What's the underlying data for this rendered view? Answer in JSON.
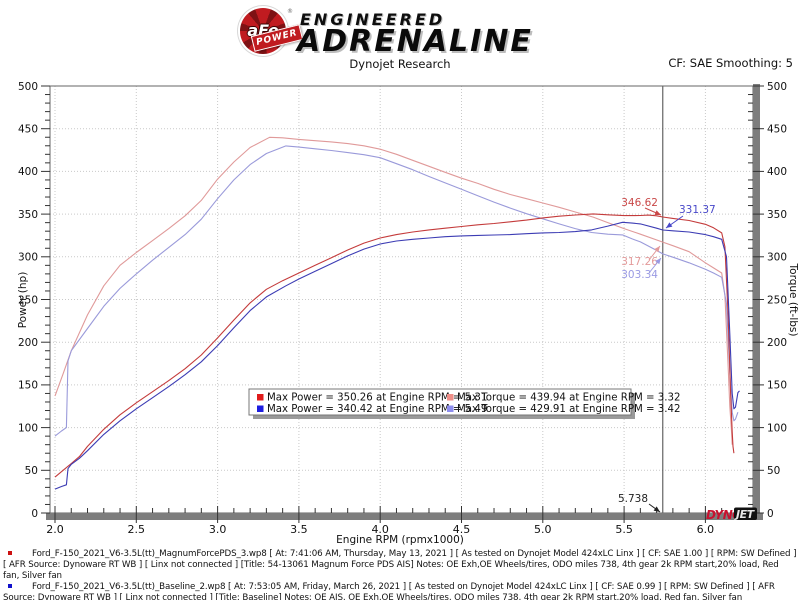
{
  "header": {
    "logo_main": "aFe",
    "logo_reg": "®",
    "logo_sub": "POWER",
    "brand_top": "ENGINEERED",
    "brand_bottom": "ADRENALINE",
    "title": "Dynojet Research",
    "correction": "CF: SAE Smoothing: 5"
  },
  "chart_data": {
    "type": "line",
    "title": "Dynojet Research",
    "xlabel": "Engine RPM (rpmx1000)",
    "ylabel_left": "Power (hp)",
    "ylabel_right": "Torque (ft-lbs)",
    "xlim": [
      2.0,
      6.29
    ],
    "ylim": [
      0,
      500
    ],
    "x_major_step": 0.5,
    "x_minor_step": 0.1,
    "x_label_min": 2.0,
    "x_label_max": 6.0,
    "y_major_step": 50,
    "y_minor_step": 10,
    "grid": "dotted",
    "legend_position": "center-bottom",
    "cursor_rpm": 5.738,
    "cursor_label": "5.738",
    "watermark": {
      "part1": "DYNO",
      "part2": "JET"
    },
    "series": [
      {
        "id": "power-magnumforce",
        "legend": "Max Power = 350.26 at Engine RPM = 5.31",
        "max_value": 350.26,
        "max_rpm": 5.31,
        "color": "#c43b3b",
        "swatch": "#e01b1b",
        "axis": "left",
        "points": [
          [
            2.0,
            42
          ],
          [
            2.05,
            50
          ],
          [
            2.1,
            58
          ],
          [
            2.15,
            66
          ],
          [
            2.2,
            78
          ],
          [
            2.3,
            98
          ],
          [
            2.4,
            115
          ],
          [
            2.5,
            129
          ],
          [
            2.6,
            142
          ],
          [
            2.7,
            155
          ],
          [
            2.8,
            169
          ],
          [
            2.9,
            185
          ],
          [
            3.0,
            205
          ],
          [
            3.1,
            226
          ],
          [
            3.2,
            246
          ],
          [
            3.3,
            262
          ],
          [
            3.4,
            272
          ],
          [
            3.5,
            281
          ],
          [
            3.6,
            290
          ],
          [
            3.7,
            299
          ],
          [
            3.8,
            308
          ],
          [
            3.9,
            316
          ],
          [
            4.0,
            322
          ],
          [
            4.1,
            326
          ],
          [
            4.2,
            329
          ],
          [
            4.3,
            331.5
          ],
          [
            4.4,
            333.5
          ],
          [
            4.5,
            335.5
          ],
          [
            4.6,
            337.5
          ],
          [
            4.7,
            339
          ],
          [
            4.8,
            341
          ],
          [
            4.9,
            343
          ],
          [
            5.0,
            345.5
          ],
          [
            5.1,
            347.5
          ],
          [
            5.2,
            349
          ],
          [
            5.31,
            350.26
          ],
          [
            5.4,
            349.2
          ],
          [
            5.5,
            348.2
          ],
          [
            5.6,
            348.4
          ],
          [
            5.65,
            348.8
          ],
          [
            5.7,
            348
          ],
          [
            5.738,
            346.62
          ],
          [
            5.8,
            345
          ],
          [
            5.9,
            342.5
          ],
          [
            6.0,
            338
          ],
          [
            6.05,
            334
          ],
          [
            6.1,
            328
          ],
          [
            6.12,
            312
          ],
          [
            6.14,
            230
          ],
          [
            6.155,
            140
          ],
          [
            6.165,
            95
          ],
          [
            6.17,
            78
          ],
          [
            6.175,
            70
          ]
        ]
      },
      {
        "id": "power-baseline",
        "legend": "Max Power = 340.42 at Engine RPM = 5.49",
        "max_value": 340.42,
        "max_rpm": 5.49,
        "color": "#3c3cb4",
        "swatch": "#1d1de0",
        "axis": "left",
        "points": [
          [
            2.0,
            28
          ],
          [
            2.04,
            31
          ],
          [
            2.07,
            33
          ],
          [
            2.08,
            52
          ],
          [
            2.1,
            57
          ],
          [
            2.15,
            64
          ],
          [
            2.2,
            73
          ],
          [
            2.3,
            92
          ],
          [
            2.4,
            108
          ],
          [
            2.5,
            122
          ],
          [
            2.6,
            135
          ],
          [
            2.7,
            148
          ],
          [
            2.8,
            162
          ],
          [
            2.9,
            177
          ],
          [
            3.0,
            196
          ],
          [
            3.1,
            217
          ],
          [
            3.2,
            237
          ],
          [
            3.3,
            253
          ],
          [
            3.42,
            266
          ],
          [
            3.5,
            274
          ],
          [
            3.6,
            283
          ],
          [
            3.7,
            292
          ],
          [
            3.8,
            301
          ],
          [
            3.9,
            309
          ],
          [
            4.0,
            315
          ],
          [
            4.1,
            318.5
          ],
          [
            4.2,
            320.5
          ],
          [
            4.3,
            322
          ],
          [
            4.4,
            323.5
          ],
          [
            4.5,
            324.5
          ],
          [
            4.6,
            325
          ],
          [
            4.7,
            325.5
          ],
          [
            4.8,
            326
          ],
          [
            4.9,
            327
          ],
          [
            5.0,
            328
          ],
          [
            5.1,
            328.5
          ],
          [
            5.2,
            329.5
          ],
          [
            5.3,
            331.5
          ],
          [
            5.4,
            336
          ],
          [
            5.49,
            340.42
          ],
          [
            5.55,
            339.5
          ],
          [
            5.6,
            338.5
          ],
          [
            5.7,
            333.5
          ],
          [
            5.738,
            331.37
          ],
          [
            5.8,
            330.5
          ],
          [
            5.9,
            329
          ],
          [
            6.0,
            326
          ],
          [
            6.05,
            323.5
          ],
          [
            6.1,
            320.5
          ],
          [
            6.13,
            300
          ],
          [
            6.15,
            210
          ],
          [
            6.165,
            140
          ],
          [
            6.175,
            122
          ],
          [
            6.185,
            124
          ],
          [
            6.2,
            141
          ],
          [
            6.21,
            143
          ]
        ]
      },
      {
        "id": "torque-magnumforce",
        "legend": "Max Torque = 439.94 at Engine RPM = 3.32",
        "max_value": 439.94,
        "max_rpm": 3.32,
        "color": "#e09a9a",
        "swatch": "#ef8e88",
        "axis": "right",
        "points": [
          [
            2.0,
            137
          ],
          [
            2.05,
            163
          ],
          [
            2.1,
            190
          ],
          [
            2.2,
            232
          ],
          [
            2.3,
            266
          ],
          [
            2.4,
            290
          ],
          [
            2.5,
            305
          ],
          [
            2.6,
            319
          ],
          [
            2.7,
            333
          ],
          [
            2.8,
            348
          ],
          [
            2.9,
            366
          ],
          [
            3.0,
            391
          ],
          [
            3.1,
            411
          ],
          [
            3.2,
            428
          ],
          [
            3.32,
            439.94
          ],
          [
            3.4,
            439.4
          ],
          [
            3.5,
            437.5
          ],
          [
            3.6,
            436
          ],
          [
            3.7,
            434.5
          ],
          [
            3.8,
            432.5
          ],
          [
            3.9,
            430
          ],
          [
            4.0,
            426
          ],
          [
            4.1,
            420
          ],
          [
            4.2,
            413
          ],
          [
            4.3,
            406
          ],
          [
            4.4,
            399
          ],
          [
            4.5,
            392
          ],
          [
            4.6,
            386
          ],
          [
            4.7,
            379
          ],
          [
            4.8,
            373
          ],
          [
            4.9,
            368
          ],
          [
            5.0,
            363
          ],
          [
            5.1,
            358
          ],
          [
            5.2,
            352.5
          ],
          [
            5.31,
            346.44
          ],
          [
            5.4,
            340
          ],
          [
            5.5,
            333
          ],
          [
            5.6,
            326.5
          ],
          [
            5.738,
            317.26
          ],
          [
            5.8,
            313
          ],
          [
            5.9,
            306
          ],
          [
            6.0,
            293
          ],
          [
            6.05,
            287
          ],
          [
            6.1,
            281
          ],
          [
            6.12,
            255
          ],
          [
            6.14,
            170
          ],
          [
            6.15,
            125
          ],
          [
            6.16,
            98
          ],
          [
            6.165,
            80
          ]
        ]
      },
      {
        "id": "torque-baseline",
        "legend": "Max Torque = 429.91 at Engine RPM = 3.42",
        "max_value": 429.91,
        "max_rpm": 3.42,
        "color": "#9a9ada",
        "swatch": "#8e8eef",
        "axis": "right",
        "points": [
          [
            2.0,
            90
          ],
          [
            2.04,
            96
          ],
          [
            2.07,
            100
          ],
          [
            2.08,
            178
          ],
          [
            2.1,
            190
          ],
          [
            2.2,
            216
          ],
          [
            2.3,
            242
          ],
          [
            2.4,
            263
          ],
          [
            2.5,
            280
          ],
          [
            2.6,
            296
          ],
          [
            2.7,
            311
          ],
          [
            2.8,
            326
          ],
          [
            2.9,
            344
          ],
          [
            3.0,
            368
          ],
          [
            3.1,
            390
          ],
          [
            3.2,
            408
          ],
          [
            3.3,
            421
          ],
          [
            3.42,
            429.91
          ],
          [
            3.5,
            428.5
          ],
          [
            3.6,
            426.5
          ],
          [
            3.7,
            424.5
          ],
          [
            3.8,
            422
          ],
          [
            3.9,
            419.5
          ],
          [
            4.0,
            416
          ],
          [
            4.1,
            409
          ],
          [
            4.2,
            402
          ],
          [
            4.3,
            394
          ],
          [
            4.4,
            386.5
          ],
          [
            4.5,
            379
          ],
          [
            4.6,
            371.5
          ],
          [
            4.7,
            364
          ],
          [
            4.8,
            357
          ],
          [
            4.9,
            350.5
          ],
          [
            5.0,
            344.5
          ],
          [
            5.1,
            338.5
          ],
          [
            5.2,
            333
          ],
          [
            5.3,
            328.5
          ],
          [
            5.4,
            326.5
          ],
          [
            5.49,
            325.66
          ],
          [
            5.55,
            321
          ],
          [
            5.6,
            317.5
          ],
          [
            5.7,
            307.5
          ],
          [
            5.738,
            303.34
          ],
          [
            5.8,
            299.5
          ],
          [
            5.9,
            293
          ],
          [
            6.0,
            285.5
          ],
          [
            6.05,
            281
          ],
          [
            6.1,
            276
          ],
          [
            6.13,
            245
          ],
          [
            6.15,
            165
          ],
          [
            6.165,
            118
          ],
          [
            6.175,
            108
          ],
          [
            6.185,
            110
          ],
          [
            6.2,
            118
          ]
        ]
      }
    ],
    "legend_order": [
      0,
      2,
      1,
      3
    ],
    "annotations": [
      {
        "label": "346.62",
        "color": "#c94848",
        "text": [
          658,
          206
        ],
        "anchor": "end",
        "from": [
          645,
          208
        ],
        "to": [
          661,
          215
        ]
      },
      {
        "label": "331.37",
        "color": "#4848c9",
        "text": [
          679,
          213
        ],
        "anchor": "start",
        "from": [
          683,
          216
        ],
        "to": [
          666,
          228
        ]
      },
      {
        "label": "317.26",
        "color": "#e39a9a",
        "text": [
          658,
          265
        ],
        "anchor": "end",
        "from": [
          649,
          260
        ],
        "to": [
          660,
          246
        ]
      },
      {
        "label": "303.34",
        "color": "#9a9ae3",
        "text": [
          658,
          278
        ],
        "anchor": "end",
        "from": [
          649,
          273
        ],
        "to": [
          661,
          258
        ]
      },
      {
        "label": "5.738",
        "color": "#222222",
        "text": [
          648,
          502
        ],
        "anchor": "end",
        "from": [
          649,
          504
        ],
        "to": [
          660,
          512
        ]
      }
    ]
  },
  "footer": {
    "entries": [
      {
        "bullet_color": "#cc1111",
        "text": "Ford_F-150_2021_V6-3.5L(tt)_MagnumForcePDS_3.wp8 [ At: 7:41:06 AM, Thursday, May 13, 2021 ] [ As tested on Dynojet Model 424xLC Linx ] [ CF: SAE 1.00 ] [ RPM: SW Defined ] [ AFR Source: Dynoware RT WB ] [ Linx not connected ] [Title: 54-13061 Magnum Force PDS AIS]  Notes: OE Exh,OE Wheels/tires, ODO miles 738, 4th gear 2k RPM start,20% load, Red fan, Silver fan"
      },
      {
        "bullet_color": "#1111cc",
        "text": "Ford_F-150_2021_V6-3.5L(tt)_Baseline_2.wp8 [ At: 7:53:05 AM, Friday, March 26, 2021 ] [ As tested on Dynojet Model 424xLC Linx ] [ CF: SAE 0.99 ] [ RPM: SW Defined ] [ AFR Source: Dynoware RT WB ] [ Linx not connected ] [Title: Baseline]  Notes: OE AIS, OE Exh,OE Wheels/tires, ODO miles 738, 4th gear 2k RPM start,20% load, Red fan, Silver fan"
      }
    ]
  }
}
